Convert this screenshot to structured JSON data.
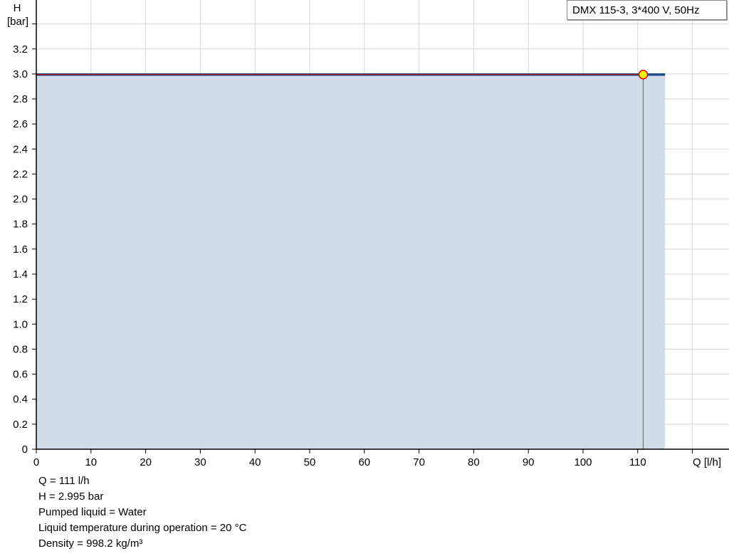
{
  "chart_data": {
    "type": "area",
    "title": "",
    "xlabel": "Q [l/h]",
    "ylabel_line1": "H",
    "ylabel_line2": "[bar]",
    "xlim": [
      0,
      120
    ],
    "ylim": [
      0,
      3.4
    ],
    "x_ticks": [
      0,
      10,
      20,
      30,
      40,
      50,
      60,
      70,
      80,
      90,
      100,
      110
    ],
    "y_ticks": [
      "0",
      "0.2",
      "0.4",
      "0.6",
      "0.8",
      "1.0",
      "1.2",
      "1.4",
      "1.6",
      "1.8",
      "2.0",
      "2.2",
      "2.4",
      "2.6",
      "2.8",
      "3.0",
      "3.2"
    ],
    "grid": true,
    "legend_position": "top-right",
    "series": [
      {
        "name": "DMX 115-3, 3*400 V, 50Hz",
        "x": [
          0,
          115
        ],
        "y": [
          2.995,
          2.995
        ],
        "color": "#1f4e8c",
        "fill": "#d0dce8"
      }
    ],
    "operating_point": {
      "x": 111,
      "y": 2.995,
      "color": "#ffff00",
      "stroke": "#e00000"
    }
  },
  "info": [
    "Q = 111 l/h",
    "H = 2.995 bar",
    "Pumped liquid = Water",
    "Liquid temperature during operation = 20 °C",
    "Density = 998.2 kg/m³"
  ]
}
